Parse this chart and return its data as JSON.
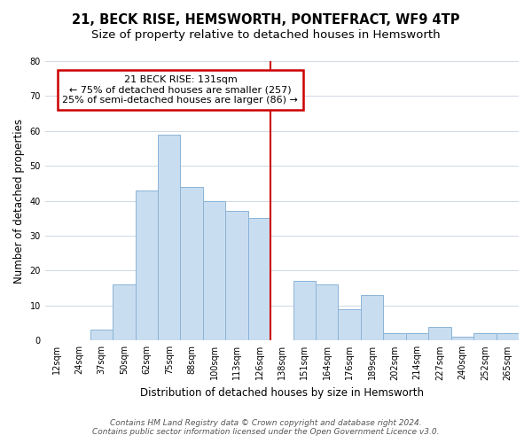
{
  "title": "21, BECK RISE, HEMSWORTH, PONTEFRACT, WF9 4TP",
  "subtitle": "Size of property relative to detached houses in Hemsworth",
  "xlabel": "Distribution of detached houses by size in Hemsworth",
  "ylabel": "Number of detached properties",
  "bar_labels": [
    "12sqm",
    "24sqm",
    "37sqm",
    "50sqm",
    "62sqm",
    "75sqm",
    "88sqm",
    "100sqm",
    "113sqm",
    "126sqm",
    "138sqm",
    "151sqm",
    "164sqm",
    "176sqm",
    "189sqm",
    "202sqm",
    "214sqm",
    "227sqm",
    "240sqm",
    "252sqm",
    "265sqm"
  ],
  "bar_values": [
    0,
    0,
    3,
    16,
    43,
    59,
    44,
    40,
    37,
    35,
    0,
    17,
    16,
    9,
    13,
    2,
    2,
    4,
    1,
    2,
    2
  ],
  "bar_color": "#c9ddf0",
  "bar_edge_color": "#8ab4d8",
  "grid_color": "#d0d8e4",
  "annotation_line1": "21 BECK RISE: 131sqm",
  "annotation_line2": "← 75% of detached houses are smaller (257)",
  "annotation_line3": "25% of semi-detached houses are larger (86) →",
  "annotation_box_color": "#ffffff",
  "annotation_box_edge_color": "#cc0000",
  "vline_color": "#cc0000",
  "vline_x": 9.5,
  "ylim": [
    0,
    80
  ],
  "yticks": [
    0,
    10,
    20,
    30,
    40,
    50,
    60,
    70,
    80
  ],
  "footnote1": "Contains HM Land Registry data © Crown copyright and database right 2024.",
  "footnote2": "Contains public sector information licensed under the Open Government Licence v3.0.",
  "title_fontsize": 10.5,
  "subtitle_fontsize": 9.5,
  "axis_label_fontsize": 8.5,
  "tick_fontsize": 7,
  "annotation_fontsize": 8,
  "footnote_fontsize": 6.5
}
